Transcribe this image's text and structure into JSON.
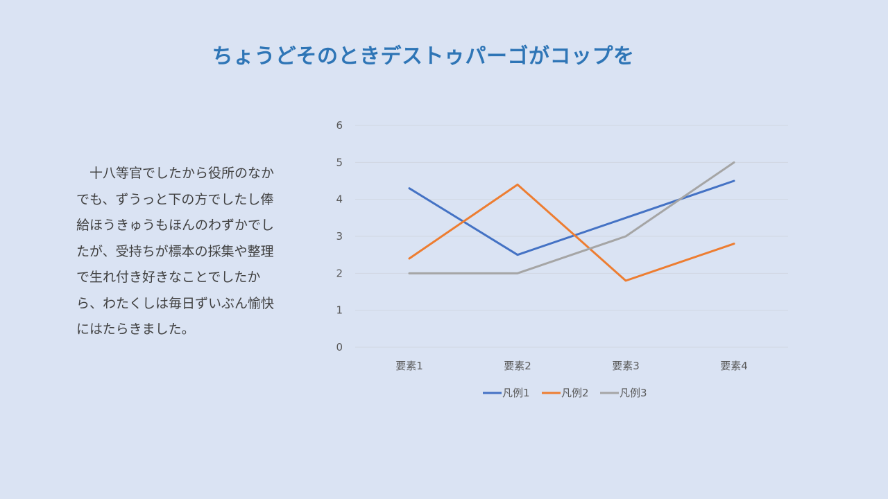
{
  "slide": {
    "title": "ちょうどそのときデストゥパーゴがコップを",
    "body": "十八等官でしたから役所のなかでも、ずうっと下の方でしたし俸給ほうきゅうもほんのわずかでしたが、受持ちが標本の採集や整理で生れ付き好きなことでしたから、わたくしは毎日ずいぶん愉快にはたらきました。"
  },
  "colors": {
    "background": "#dae3f3",
    "title": "#2e75b6",
    "grid": "#d0d7e2",
    "axis_text": "#595959"
  },
  "chart_data": {
    "type": "line",
    "categories": [
      "要素1",
      "要素2",
      "要素3",
      "要素4"
    ],
    "series": [
      {
        "name": "凡例1",
        "values": [
          4.3,
          2.5,
          3.5,
          4.5
        ],
        "color": "#4472c4"
      },
      {
        "name": "凡例2",
        "values": [
          2.4,
          4.4,
          1.8,
          2.8
        ],
        "color": "#ed7d31"
      },
      {
        "name": "凡例3",
        "values": [
          2,
          2,
          3,
          5
        ],
        "color": "#a5a5a5"
      }
    ],
    "yticks": [
      "0",
      "1",
      "2",
      "3",
      "4",
      "5",
      "6"
    ],
    "ylim": [
      0,
      6
    ],
    "grid": true,
    "legend": "bottom"
  }
}
